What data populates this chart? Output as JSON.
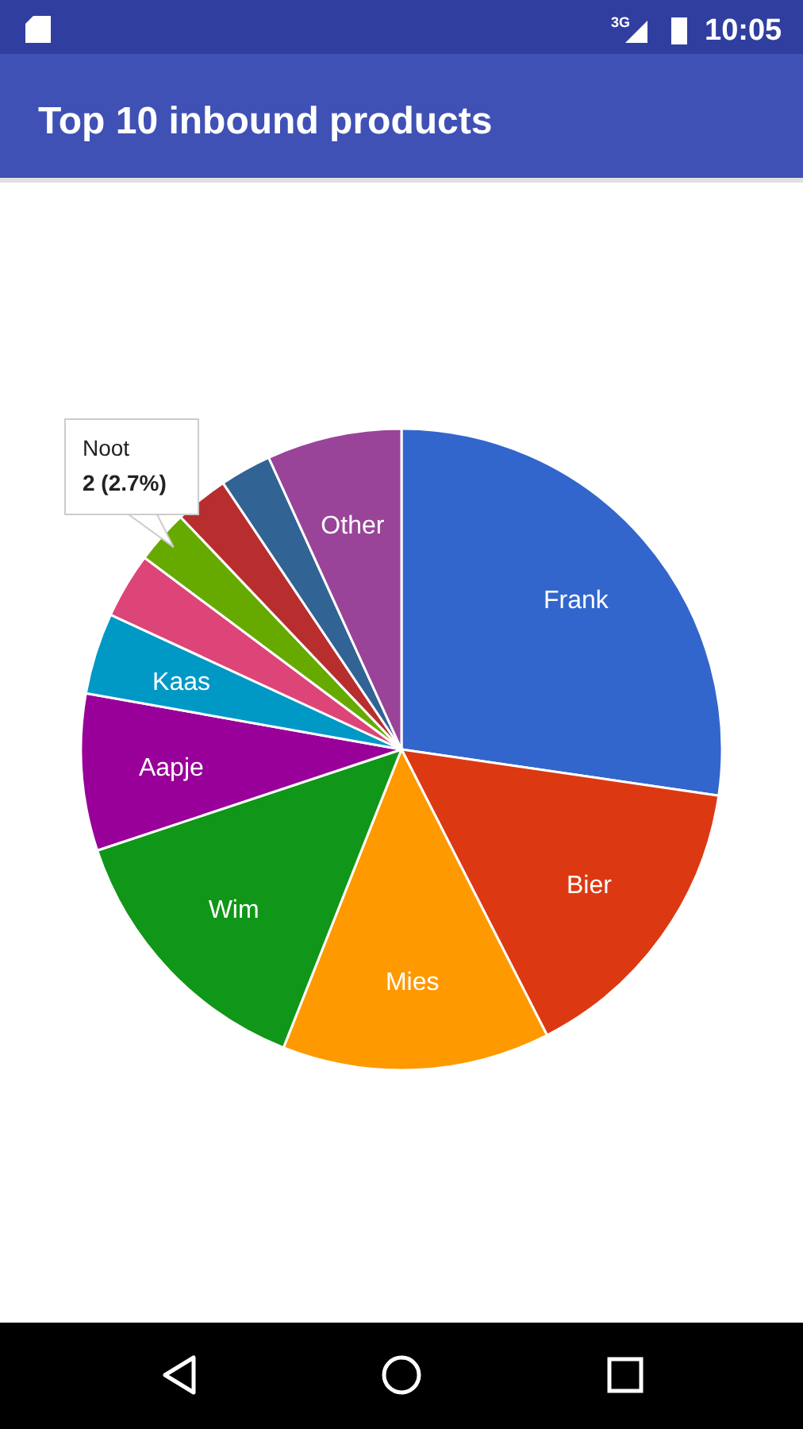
{
  "chart_data": {
    "type": "pie",
    "title": "Top 10 inbound products",
    "categories": [
      "Frank",
      "Bier",
      "Mies",
      "Wim",
      "Aapje",
      "Kaas",
      null,
      "Noot",
      null,
      null,
      "Other"
    ],
    "values": [
      27.3,
      15.2,
      13.5,
      13.9,
      7.9,
      4.1,
      3.3,
      2.7,
      2.7,
      2.6,
      6.8
    ],
    "colors": [
      "#3366cc",
      "#dc3912",
      "#ff9900",
      "#109618",
      "#990099",
      "#0099c6",
      "#dd4477",
      "#66aa00",
      "#b82e2e",
      "#316395",
      "#994499"
    ],
    "annotations": [
      {
        "text": "2 (2.7%)",
        "x": "Noot"
      },
      "3G",
      "10:05"
    ]
  }
}
